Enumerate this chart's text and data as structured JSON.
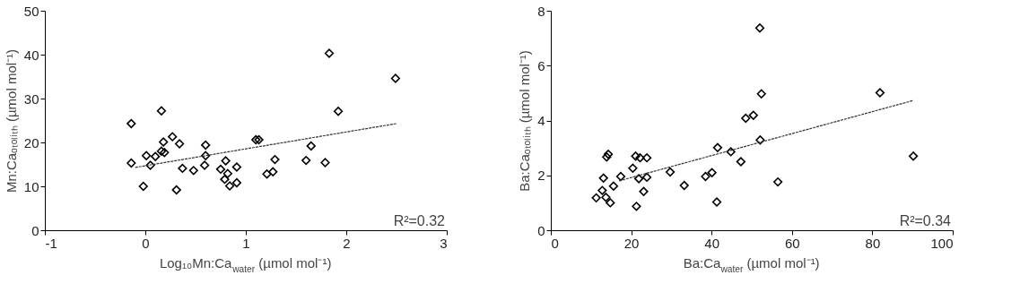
{
  "chart_data": [
    {
      "type": "scatter",
      "xlabel": "Log₁₀Mn:Ca$_{water}$ (µmol mol⁻¹)",
      "ylabel": "Mn:Caₒₜₒₗᵢₜₕ (µmol mol⁻¹)",
      "xlim": [
        -1,
        3
      ],
      "xticks": [
        -1,
        0,
        1,
        2,
        3
      ],
      "ylim": [
        0,
        50
      ],
      "yticks": [
        0,
        10,
        20,
        30,
        40,
        50
      ],
      "grid": false,
      "annotations": [
        "R²=0.32"
      ],
      "series": [
        {
          "marker": "diamond",
          "color": "#000000",
          "x": [
            -0.14,
            0.16,
            1.83,
            2.49,
            1.92,
            -0.14,
            -0.02,
            0.01,
            0.05,
            0.1,
            0.16,
            0.19,
            0.18,
            0.27,
            0.34,
            0.31,
            0.37,
            0.48,
            0.6,
            0.6,
            0.59,
            0.8,
            0.75,
            0.82,
            0.79,
            0.84,
            0.91,
            0.91,
            1.1,
            1.13,
            1.21,
            1.27,
            1.29,
            1.65,
            1.6,
            1.79
          ],
          "values": [
            24.3,
            27.2,
            40.3,
            34.6,
            27.1,
            15.3,
            10.0,
            17.0,
            14.8,
            16.8,
            18.0,
            17.7,
            20.1,
            21.3,
            19.7,
            9.2,
            14.1,
            13.6,
            19.4,
            17.0,
            14.8,
            15.8,
            13.9,
            12.9,
            11.6,
            10.1,
            14.4,
            10.8,
            20.6,
            20.6,
            12.8,
            13.3,
            16.1,
            19.2,
            15.9,
            15.4
          ]
        },
        {
          "type": "line",
          "color": "#333333",
          "line_style": "dashed",
          "x": [
            -0.1,
            2.5
          ],
          "values": [
            14.3,
            24.3
          ]
        }
      ]
    },
    {
      "type": "scatter",
      "xlabel": "Ba:Ca$_{water}$ (µmol mol⁻¹)",
      "ylabel": "Ba:Caₒₜₒₗᵢₜₕ (µmol mol⁻¹)",
      "xlim": [
        0,
        100
      ],
      "xticks": [
        0,
        20,
        40,
        60,
        80,
        100
      ],
      "ylim": [
        0,
        8
      ],
      "yticks": [
        0,
        2,
        4,
        6,
        8
      ],
      "grid": false,
      "annotations": [
        "R²=0.34"
      ],
      "series": [
        {
          "marker": "diamond",
          "color": "#000000",
          "x": [
            11.3,
            13.1,
            12.8,
            13.7,
            14.8,
            14.3,
            13.9,
            15.6,
            17.4,
            20.4,
            21.1,
            21.3,
            22.2,
            21.9,
            23.1,
            23.9,
            23.9,
            29.7,
            33.2,
            38.5,
            40.1,
            41.3,
            41.5,
            44.8,
            47.3,
            48.5,
            50.4,
            52.0,
            52.4,
            52.1,
            56.5,
            81.9,
            90.2
          ],
          "values": [
            1.18,
            1.9,
            1.45,
            1.2,
            1.0,
            2.77,
            2.67,
            1.61,
            1.96,
            2.26,
            2.7,
            0.87,
            2.64,
            1.88,
            1.41,
            2.64,
            1.93,
            2.12,
            1.63,
            1.96,
            2.1,
            1.03,
            3.01,
            2.86,
            2.5,
            4.08,
            4.19,
            7.37,
            4.97,
            3.29,
            1.76,
            5.01,
            2.7
          ]
        },
        {
          "type": "line",
          "color": "#333333",
          "line_style": "dashed",
          "x": [
            17.0,
            90.2
          ],
          "values": [
            1.8,
            4.73
          ]
        }
      ]
    }
  ]
}
